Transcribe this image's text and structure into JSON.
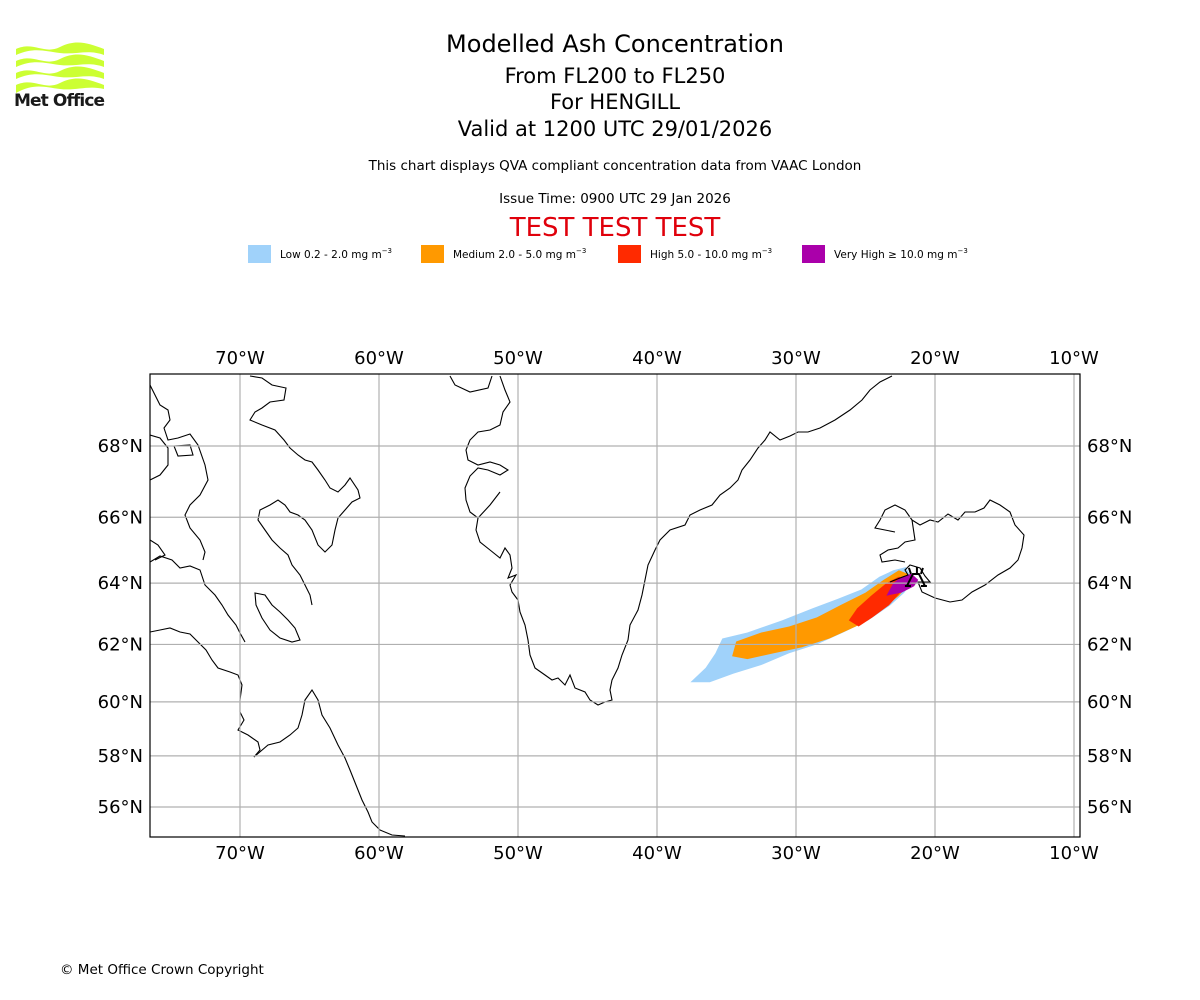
{
  "logo": {
    "text": "Met Office",
    "color": "#ccff33"
  },
  "title": {
    "main": "Modelled Ash Concentration",
    "levels": "From FL200 to FL250",
    "volcano": "For HENGILL",
    "valid": "Valid at 1200 UTC 29/01/2026"
  },
  "subtitle": "This chart displays QVA compliant concentration data from VAAC London",
  "issue_time": "Issue Time: 0900 UTC 29 Jan 2026",
  "test_banner": {
    "text": "TEST TEST TEST",
    "color": "#e0000b"
  },
  "legend": [
    {
      "label": "Low 0.2 - 2.0 mg m",
      "unit_exp": "−3",
      "color": "#a0d2fa"
    },
    {
      "label": "Medium 2.0 - 5.0 mg m",
      "unit_exp": "−3",
      "color": "#ff9900"
    },
    {
      "label": "High 5.0 - 10.0 mg m",
      "unit_exp": "−3",
      "color": "#ff2a00"
    },
    {
      "label": "Very High ≥ 10.0 mg m",
      "unit_exp": "−3",
      "color": "#aa00aa"
    }
  ],
  "copyright": "© Met Office Crown Copyright",
  "chart_data": {
    "type": "map",
    "projection": "mercator",
    "lon_range": [
      -76.5,
      -9.6
    ],
    "lat_range": [
      55,
      70
    ],
    "lon_ticks": [
      -70,
      -60,
      -50,
      -40,
      -30,
      -20,
      -10
    ],
    "lon_tick_labels": [
      "70°W",
      "60°W",
      "50°W",
      "40°W",
      "30°W",
      "20°W",
      "10°W"
    ],
    "lat_ticks": [
      68,
      66,
      64,
      62,
      60,
      58,
      56
    ],
    "lat_tick_labels": [
      "68°N",
      "66°N",
      "64°N",
      "62°N",
      "60°N",
      "58°N",
      "56°N"
    ],
    "grid": true,
    "source_volcano": {
      "name": "HENGILL",
      "lon": -21.3,
      "lat": 64.1
    },
    "ash_levels": [
      {
        "name": "Low",
        "range": "0.2 - 2.0",
        "color": "#a0d2fa",
        "polygon": [
          [
            -37.6,
            60.7
          ],
          [
            -36.5,
            61.2
          ],
          [
            -35.8,
            61.7
          ],
          [
            -35.3,
            62.2
          ],
          [
            -33.5,
            62.4
          ],
          [
            -31,
            62.8
          ],
          [
            -28.8,
            63.2
          ],
          [
            -27,
            63.5
          ],
          [
            -25.3,
            63.8
          ],
          [
            -24,
            64.2
          ],
          [
            -23,
            64.4
          ],
          [
            -22.1,
            64.5
          ],
          [
            -21.6,
            64.1
          ],
          [
            -22.2,
            63.7
          ],
          [
            -23.2,
            63.3
          ],
          [
            -24.8,
            62.8
          ],
          [
            -26.6,
            62.4
          ],
          [
            -28.5,
            62
          ],
          [
            -30.5,
            61.7
          ],
          [
            -32.5,
            61.3
          ],
          [
            -34.5,
            61
          ],
          [
            -36.2,
            60.7
          ]
        ]
      },
      {
        "name": "Medium",
        "range": "2.0 - 5.0",
        "color": "#ff9900",
        "polygon": [
          [
            -34.6,
            61.6
          ],
          [
            -34.3,
            62.1
          ],
          [
            -32.5,
            62.4
          ],
          [
            -30.5,
            62.6
          ],
          [
            -28.5,
            62.9
          ],
          [
            -26.8,
            63.3
          ],
          [
            -25,
            63.7
          ],
          [
            -23.7,
            64.1
          ],
          [
            -22.6,
            64.4
          ],
          [
            -22,
            64.3
          ],
          [
            -21.8,
            64
          ],
          [
            -22.6,
            63.6
          ],
          [
            -24,
            63.1
          ],
          [
            -25.7,
            62.6
          ],
          [
            -27.6,
            62.2
          ],
          [
            -29.6,
            61.9
          ],
          [
            -31.6,
            61.7
          ],
          [
            -33.5,
            61.5
          ]
        ]
      },
      {
        "name": "High",
        "range": "5.0 - 10.0",
        "color": "#ff2a00",
        "polygon": [
          [
            -26.2,
            62.8
          ],
          [
            -25.6,
            63.2
          ],
          [
            -24.6,
            63.6
          ],
          [
            -23.5,
            64
          ],
          [
            -22.6,
            64.2
          ],
          [
            -22,
            64.1
          ],
          [
            -22.3,
            63.8
          ],
          [
            -23.3,
            63.3
          ],
          [
            -24.5,
            62.9
          ],
          [
            -25.5,
            62.6
          ]
        ]
      },
      {
        "name": "Very High",
        "range": "≥ 10.0",
        "color": "#aa00aa",
        "polygon": [
          [
            -23.5,
            63.6
          ],
          [
            -23,
            64.0
          ],
          [
            -22.4,
            64.2
          ],
          [
            -21.7,
            64.3
          ],
          [
            -21.2,
            64.1
          ],
          [
            -21.5,
            63.9
          ],
          [
            -22.4,
            63.7
          ]
        ]
      }
    ]
  }
}
